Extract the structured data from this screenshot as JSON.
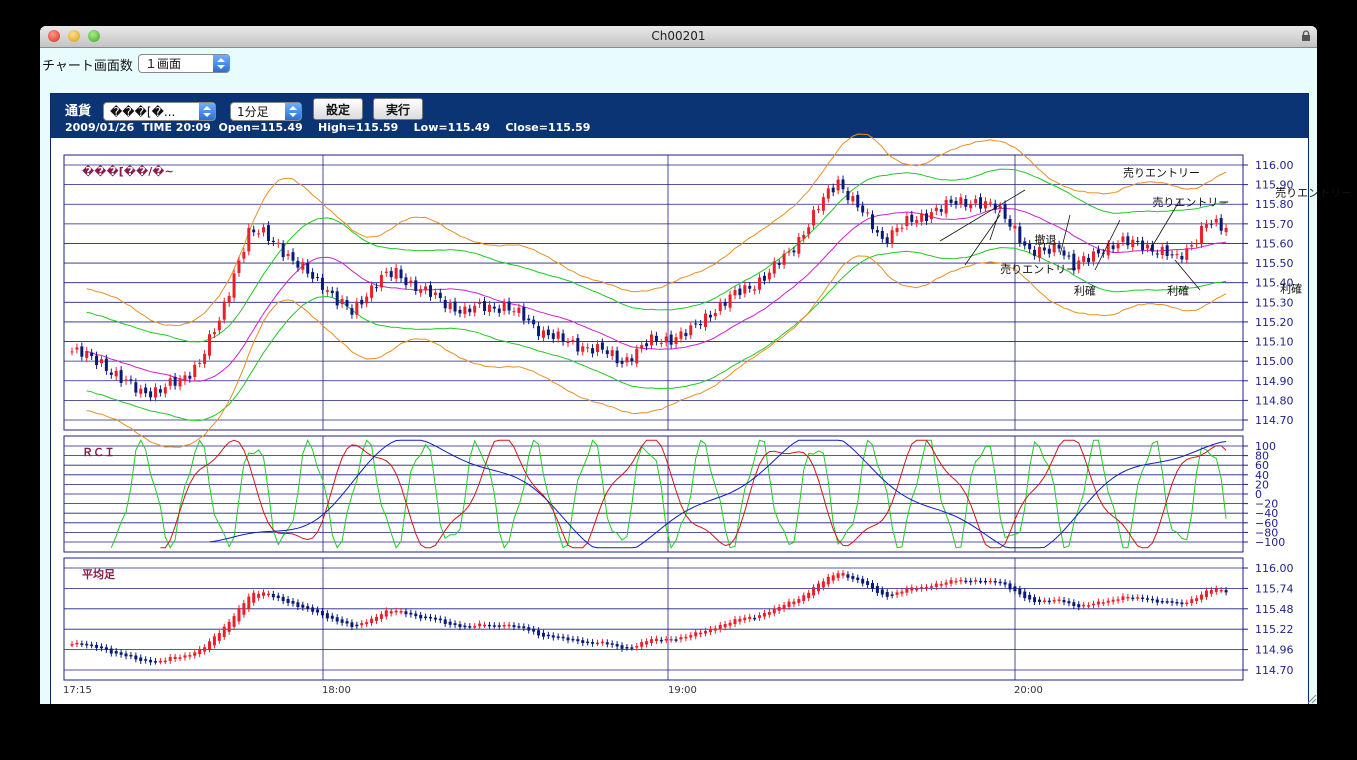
{
  "window": {
    "title": "Ch00201"
  },
  "toolbar": {
    "screens_label": "チャート画面数",
    "screens_value": "１画面"
  },
  "panel": {
    "currency_label": "通貨",
    "currency_value": "���[�...",
    "timeframe_value": "1分足",
    "settings_button": "設定",
    "run_button": "実行",
    "info_line": "2009/01/26  TIME 20:09  Open=115.49    High=115.59    Low=115.49    Close=115.59"
  },
  "colors": {
    "bg": "#e8fbfd",
    "header": "#0b3474",
    "grid": "#1f1f8a",
    "up": "#e8202a",
    "down": "#0a1a7a",
    "label": "#8b1a4a"
  },
  "chart_data": [
    {
      "type": "candlestick",
      "title": "���[��/�~",
      "time_labels": [
        "17:15",
        "18:00",
        "19:00",
        "20:00"
      ],
      "ylim": [
        114.7,
        116.0
      ],
      "yticks": [
        "116.00",
        "115.90",
        "115.80",
        "115.70",
        "115.60",
        "115.50",
        "115.40",
        "115.30",
        "115.20",
        "115.10",
        "115.00",
        "114.90",
        "114.80",
        "114.70"
      ],
      "close_path": [
        [
          0,
          115.05
        ],
        [
          6,
          115.0
        ],
        [
          10,
          114.9
        ],
        [
          14,
          114.85
        ],
        [
          18,
          114.85
        ],
        [
          22,
          114.9
        ],
        [
          26,
          115.0
        ],
        [
          30,
          115.2
        ],
        [
          33,
          115.45
        ],
        [
          36,
          115.65
        ],
        [
          39,
          115.65
        ],
        [
          42,
          115.6
        ],
        [
          45,
          115.5
        ],
        [
          48,
          115.45
        ],
        [
          51,
          115.4
        ],
        [
          54,
          115.3
        ],
        [
          57,
          115.25
        ],
        [
          60,
          115.35
        ],
        [
          63,
          115.42
        ],
        [
          66,
          115.45
        ],
        [
          69,
          115.4
        ],
        [
          72,
          115.35
        ],
        [
          76,
          115.3
        ],
        [
          80,
          115.25
        ],
        [
          84,
          115.28
        ],
        [
          88,
          115.28
        ],
        [
          92,
          115.22
        ],
        [
          96,
          115.15
        ],
        [
          100,
          115.1
        ],
        [
          104,
          115.08
        ],
        [
          108,
          115.05
        ],
        [
          112,
          115.0
        ],
        [
          115,
          115.05
        ],
        [
          118,
          115.1
        ],
        [
          122,
          115.12
        ],
        [
          126,
          115.15
        ],
        [
          130,
          115.25
        ],
        [
          134,
          115.32
        ],
        [
          138,
          115.38
        ],
        [
          142,
          115.45
        ],
        [
          146,
          115.55
        ],
        [
          150,
          115.7
        ],
        [
          153,
          115.82
        ],
        [
          156,
          115.92
        ],
        [
          159,
          115.82
        ],
        [
          162,
          115.72
        ],
        [
          165,
          115.62
        ],
        [
          168,
          115.68
        ],
        [
          172,
          115.72
        ],
        [
          176,
          115.78
        ],
        [
          180,
          115.8
        ],
        [
          184,
          115.82
        ],
        [
          188,
          115.78
        ],
        [
          192,
          115.68
        ],
        [
          195,
          115.55
        ],
        [
          198,
          115.55
        ],
        [
          201,
          115.6
        ],
        [
          204,
          115.48
        ],
        [
          207,
          115.52
        ],
        [
          210,
          115.58
        ],
        [
          214,
          115.6
        ],
        [
          218,
          115.6
        ],
        [
          222,
          115.55
        ],
        [
          225,
          115.52
        ],
        [
          228,
          115.6
        ],
        [
          231,
          115.7
        ],
        [
          234,
          115.68
        ]
      ],
      "overlays": [
        "bollinger_orange",
        "bollinger_green",
        "moving_average_magenta"
      ],
      "annotations": [
        {
          "text": "売りエントリー",
          "x": 214,
          "y": 115.94
        },
        {
          "text": "売りエントリー",
          "x": 220,
          "y": 115.79
        },
        {
          "text": "売りエントリー",
          "x": 245,
          "y": 115.84
        },
        {
          "text": "売りエントリー",
          "x": 189,
          "y": 115.45
        },
        {
          "text": "撤退",
          "x": 196,
          "y": 115.6
        },
        {
          "text": "利確",
          "x": 204,
          "y": 115.34
        },
        {
          "text": "利確",
          "x": 223,
          "y": 115.34
        },
        {
          "text": "利確",
          "x": 246,
          "y": 115.35
        }
      ]
    },
    {
      "type": "line",
      "title": "ＲＣＩ",
      "ylim": [
        -100,
        100
      ],
      "yticks": [
        "100",
        "80",
        "60",
        "40",
        "20",
        "0",
        "−20",
        "−40",
        "−60",
        "−80",
        "−100"
      ],
      "series_colors": [
        "#22cc22",
        "#d01818",
        "#1020c0"
      ]
    },
    {
      "type": "candlestick",
      "title": "平均足",
      "ylim": [
        114.7,
        116.0
      ],
      "yticks": [
        "116.00",
        "115.74",
        "115.48",
        "115.22",
        "114.96",
        "114.70"
      ]
    }
  ]
}
